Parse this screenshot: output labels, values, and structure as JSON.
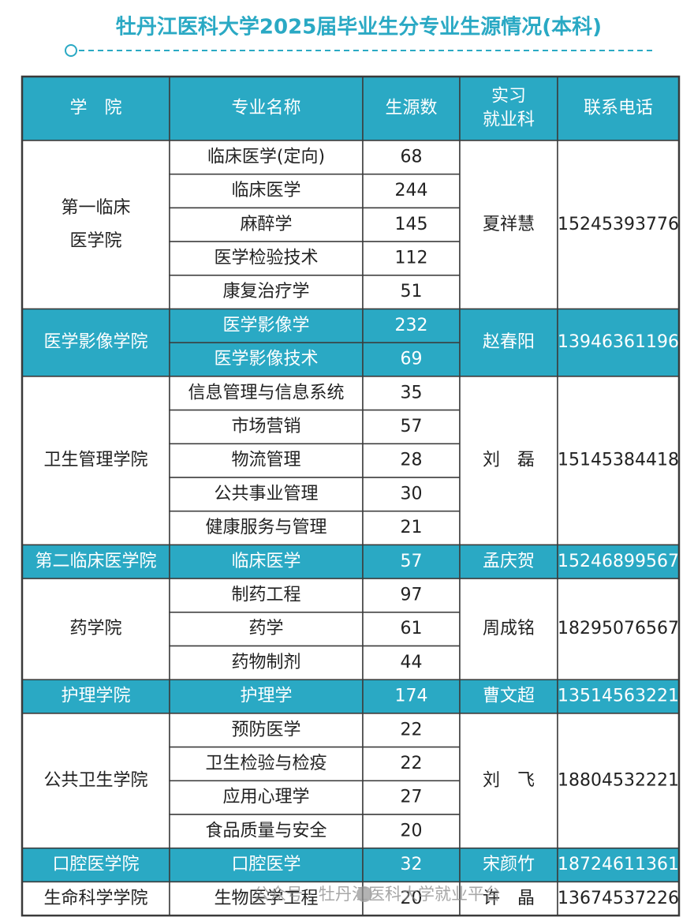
{
  "header": {
    "title": "牡丹江医科大学2025届毕业生分专业生源情况(本科)"
  },
  "table": {
    "columns": [
      [
        "学　院"
      ],
      [
        "专业名称"
      ],
      [
        "生源数"
      ],
      [
        "实习",
        "就业科"
      ],
      [
        "联系电话"
      ]
    ],
    "colleges": [
      {
        "name": [
          "第一临床",
          "医学院"
        ],
        "highlighted": false,
        "contact": "夏祥慧",
        "phone": "15245393776",
        "majors": [
          {
            "name": "临床医学(定向)",
            "count": "68"
          },
          {
            "name": "临床医学",
            "count": "244"
          },
          {
            "name": "麻醉学",
            "count": "145"
          },
          {
            "name": "医学检验技术",
            "count": "112"
          },
          {
            "name": "康复治疗学",
            "count": "51"
          }
        ]
      },
      {
        "name": [
          "医学影像学院"
        ],
        "highlighted": true,
        "contact": "赵春阳",
        "phone": "13946361196",
        "majors": [
          {
            "name": "医学影像学",
            "count": "232"
          },
          {
            "name": "医学影像技术",
            "count": "69"
          }
        ]
      },
      {
        "name": [
          "卫生管理学院"
        ],
        "highlighted": false,
        "contact": "刘　磊",
        "phone": "15145384418",
        "majors": [
          {
            "name": "信息管理与信息系统",
            "count": "35"
          },
          {
            "name": "市场营销",
            "count": "57"
          },
          {
            "name": "物流管理",
            "count": "28"
          },
          {
            "name": "公共事业管理",
            "count": "30"
          },
          {
            "name": "健康服务与管理",
            "count": "21"
          }
        ]
      },
      {
        "name": [
          "第二临床医学院"
        ],
        "highlighted": true,
        "contact": "孟庆贺",
        "phone": "15246899567",
        "majors": [
          {
            "name": "临床医学",
            "count": "57"
          }
        ]
      },
      {
        "name": [
          "药学院"
        ],
        "highlighted": false,
        "contact": "周成铭",
        "phone": "18295076567",
        "majors": [
          {
            "name": "制药工程",
            "count": "97"
          },
          {
            "name": "药学",
            "count": "61"
          },
          {
            "name": "药物制剂",
            "count": "44"
          }
        ]
      },
      {
        "name": [
          "护理学院"
        ],
        "highlighted": true,
        "contact": "曹文超",
        "phone": "13514563221",
        "majors": [
          {
            "name": "护理学",
            "count": "174"
          }
        ]
      },
      {
        "name": [
          "公共卫生学院"
        ],
        "highlighted": false,
        "contact": "刘　飞",
        "phone": "18804532221",
        "majors": [
          {
            "name": "预防医学",
            "count": "22"
          },
          {
            "name": "卫生检验与检疫",
            "count": "22"
          },
          {
            "name": "应用心理学",
            "count": "27"
          },
          {
            "name": "食品质量与安全",
            "count": "20"
          }
        ]
      },
      {
        "name": [
          "口腔医学院"
        ],
        "highlighted": true,
        "contact": "宋颜竹",
        "phone": "18724611361",
        "majors": [
          {
            "name": "口腔医学",
            "count": "32"
          }
        ]
      },
      {
        "name": [
          "生命科学学院"
        ],
        "highlighted": false,
        "contact": "许　晶",
        "phone": "13674537226",
        "majors": [
          {
            "name": "生物医学工程",
            "count": "20"
          }
        ]
      }
    ]
  },
  "watermark": "公众号 · 牡丹江医科大学就业平台"
}
